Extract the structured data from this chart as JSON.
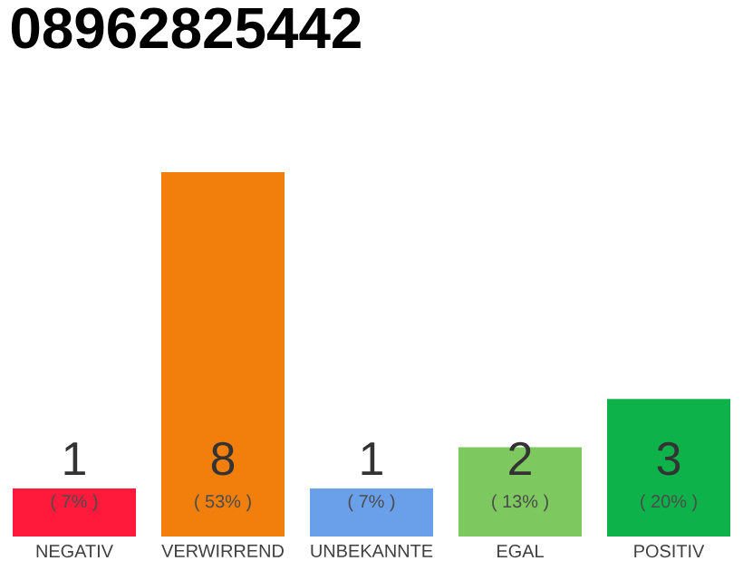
{
  "chart_data": {
    "type": "bar",
    "title": "08962825442",
    "categories": [
      "NEGATIV",
      "VERWIRREND",
      "UNBEKANNTE",
      "EGAL",
      "POSITIV"
    ],
    "values": [
      7,
      53,
      7,
      13,
      20
    ],
    "colors": [
      "#ff1a3c",
      "#f27f0c",
      "#6aa0ea",
      "#7ec95f",
      "#0db24a"
    ],
    "value_labels": [
      "( 7% )",
      "( 53% )",
      "( 7% )",
      "( 13% )",
      "( 20% )"
    ],
    "annotations": [
      "1",
      "8",
      "1",
      "2",
      "3"
    ]
  }
}
